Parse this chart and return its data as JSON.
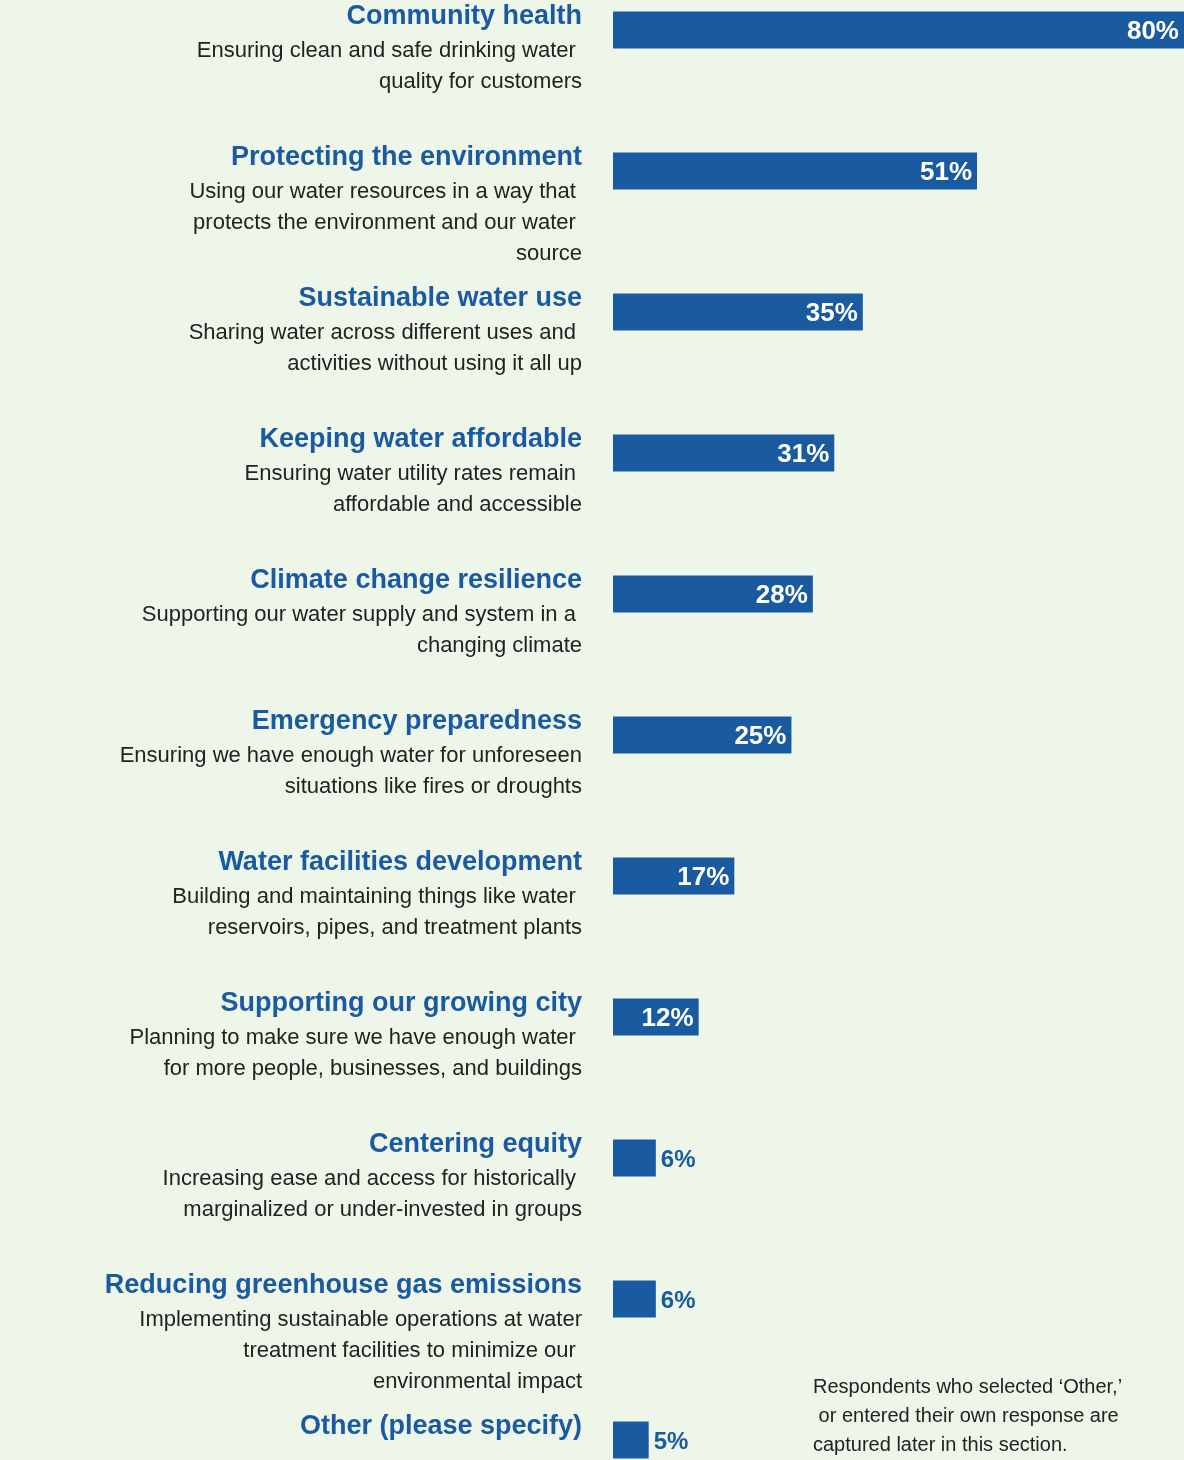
{
  "chart_data": {
    "type": "bar",
    "orientation": "horizontal",
    "categories": [
      "Community health",
      "Protecting the environment",
      "Sustainable water use",
      "Keeping water affordable",
      "Climate change resilience",
      "Emergency preparedness",
      "Water facilities development",
      "Supporting our growing city",
      "Centering equity",
      "Reducing greenhouse gas emissions",
      "Other (please specify)"
    ],
    "values": [
      80,
      51,
      35,
      31,
      28,
      25,
      17,
      12,
      6,
      6,
      5
    ],
    "value_labels": [
      "80%",
      "51%",
      "35%",
      "31%",
      "28%",
      "25%",
      "17%",
      "12%",
      "6%",
      "6%",
      "5%"
    ],
    "color": "#1a5aa0",
    "annotations": [
      "Ensuring clean and safe drinking water quality for customers",
      "Using our water resources in a way that protects the environment and our water source",
      "Sharing water across different uses and activities without using it all up",
      "Ensuring water utility rates remain affordable and accessible",
      "Supporting our water supply and system in a changing climate",
      "Ensuring we have enough water for unforeseen situations like fires or droughts",
      "Building and maintaining things like water reservoirs, pipes, and treatment plants",
      "Planning to make sure we have enough water for more people, businesses, and buildings",
      "Increasing ease and access for historically marginalized or under-invested in groups",
      "Implementing sustainable operations at water treatment facilities to minimize our environmental impact",
      "Respondents who selected ‘Other,’ or entered their own response are captured later in this section."
    ]
  }
}
